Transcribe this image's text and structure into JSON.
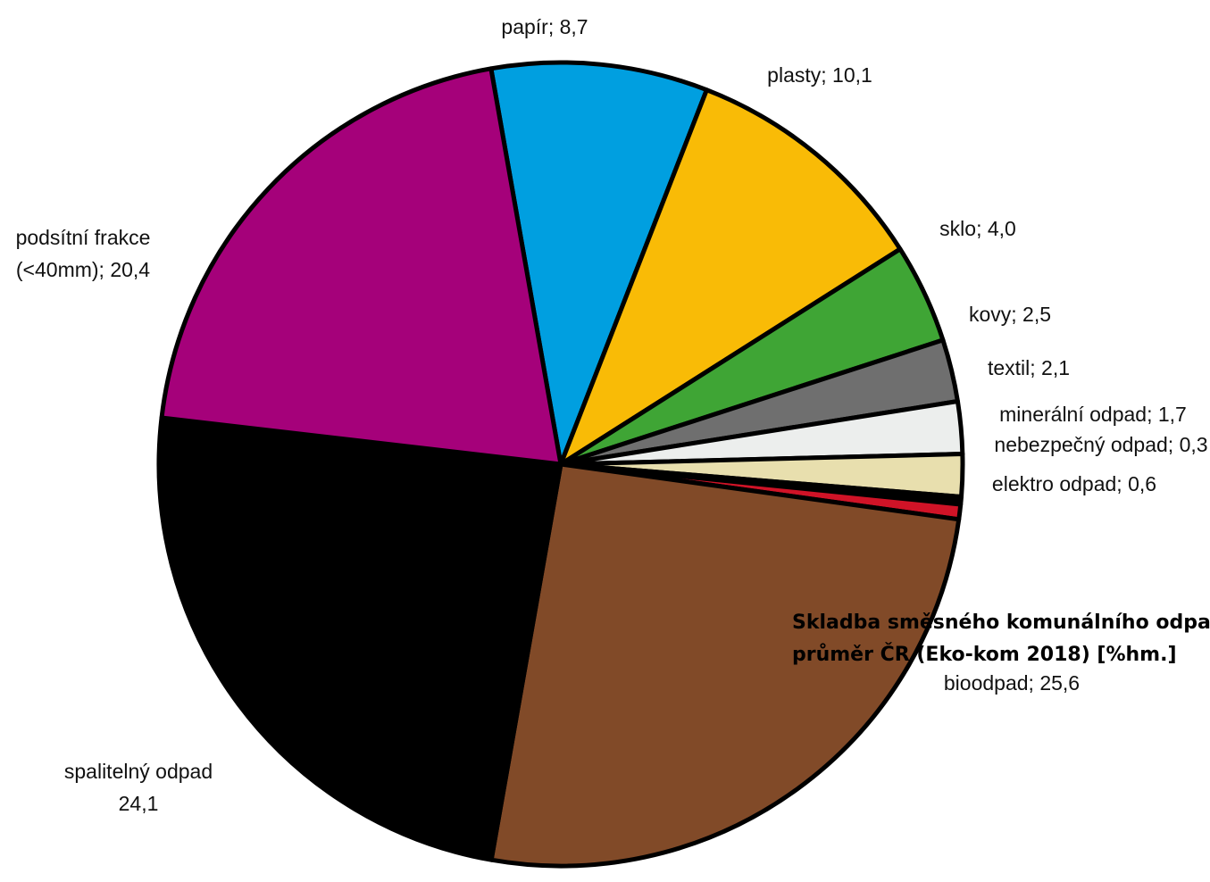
{
  "chart_data": {
    "type": "pie",
    "title_lines": [
      "Skladba směsného komunálního odpadu,",
      "průměr ČR (Eko-kom 2018) [%hm.]"
    ],
    "slices": [
      {
        "name": "papír",
        "label_lines": [
          "papír; 8,7"
        ],
        "value": 8.7,
        "color": "#009fe0"
      },
      {
        "name": "plasty",
        "label_lines": [
          "plasty; 10,1"
        ],
        "value": 10.1,
        "color": "#f9bb06"
      },
      {
        "name": "sklo",
        "label_lines": [
          "sklo; 4,0"
        ],
        "value": 4.0,
        "color": "#3fa535"
      },
      {
        "name": "kovy",
        "label_lines": [
          "kovy; 2,5"
        ],
        "value": 2.5,
        "color": "#6f6f6f"
      },
      {
        "name": "textil",
        "label_lines": [
          "textil; 2,1"
        ],
        "value": 2.1,
        "color": "#eceeed"
      },
      {
        "name": "minerální odpad",
        "label_lines": [
          "minerální odpad; 1,7"
        ],
        "value": 1.7,
        "color": "#e8dfae"
      },
      {
        "name": "nebezpečný odpad",
        "label_lines": [
          "nebezpečný odpad; 0,3"
        ],
        "value": 0.3,
        "color": "#000000"
      },
      {
        "name": "elektro odpad",
        "label_lines": [
          "elektro odpad; 0,6"
        ],
        "value": 0.6,
        "color": "#d01327"
      },
      {
        "name": "bioodpad",
        "label_lines": [
          "bioodpad; 25,6"
        ],
        "value": 25.6,
        "color": "#814a28"
      },
      {
        "name": "spalitelný odpad",
        "label_lines": [
          "spalitelný odpad",
          "24,1"
        ],
        "value": 24.1,
        "color": "#000000"
      },
      {
        "name": "podsítní frakce (<40mm)",
        "label_lines": [
          "podsítní frakce",
          "(<40mm); 20,4"
        ],
        "value": 20.4,
        "color": "#a5017a"
      }
    ]
  }
}
